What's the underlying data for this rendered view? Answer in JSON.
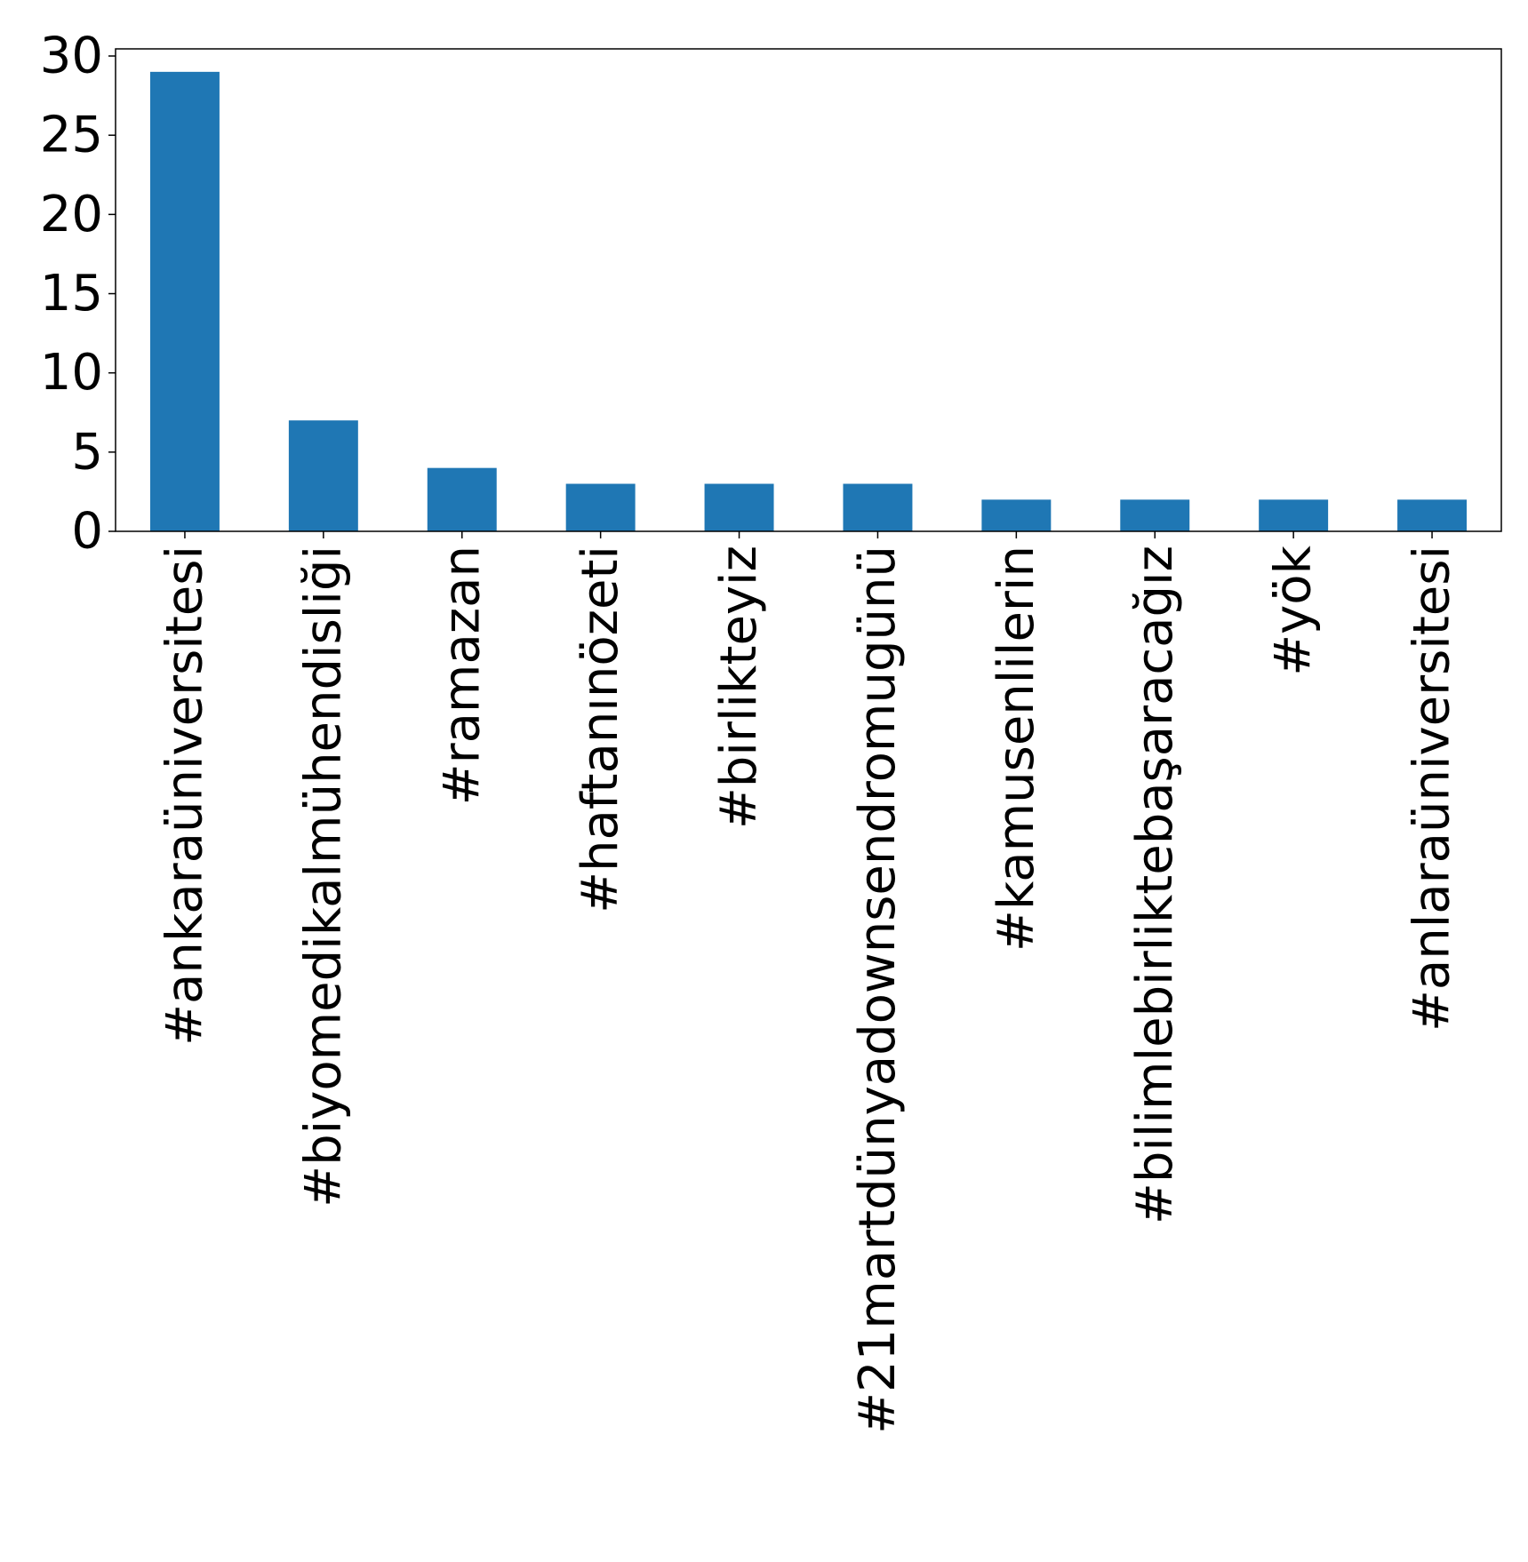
{
  "chart_data": {
    "type": "bar",
    "categories": [
      "#ankaraüniversitesi",
      "#biyomedikalmühendisliği",
      "#ramazan",
      "#haftanınözeti",
      "#birlikteyiz",
      "#21martdünyadownsendromugünü",
      "#kamusenlilerin",
      "#bilimlebirliktebaşaracağız",
      "#yök",
      "#anlaraüniversitesi"
    ],
    "values": [
      29,
      7,
      4,
      3,
      3,
      3,
      2,
      2,
      2,
      2
    ],
    "ylim": [
      0,
      30.45
    ],
    "yticks": [
      "0",
      "5",
      "10",
      "15",
      "20",
      "25",
      "30"
    ],
    "title": "",
    "xlabel": "",
    "ylabel": "",
    "grid": false,
    "bar_color": "#1f77b4"
  }
}
